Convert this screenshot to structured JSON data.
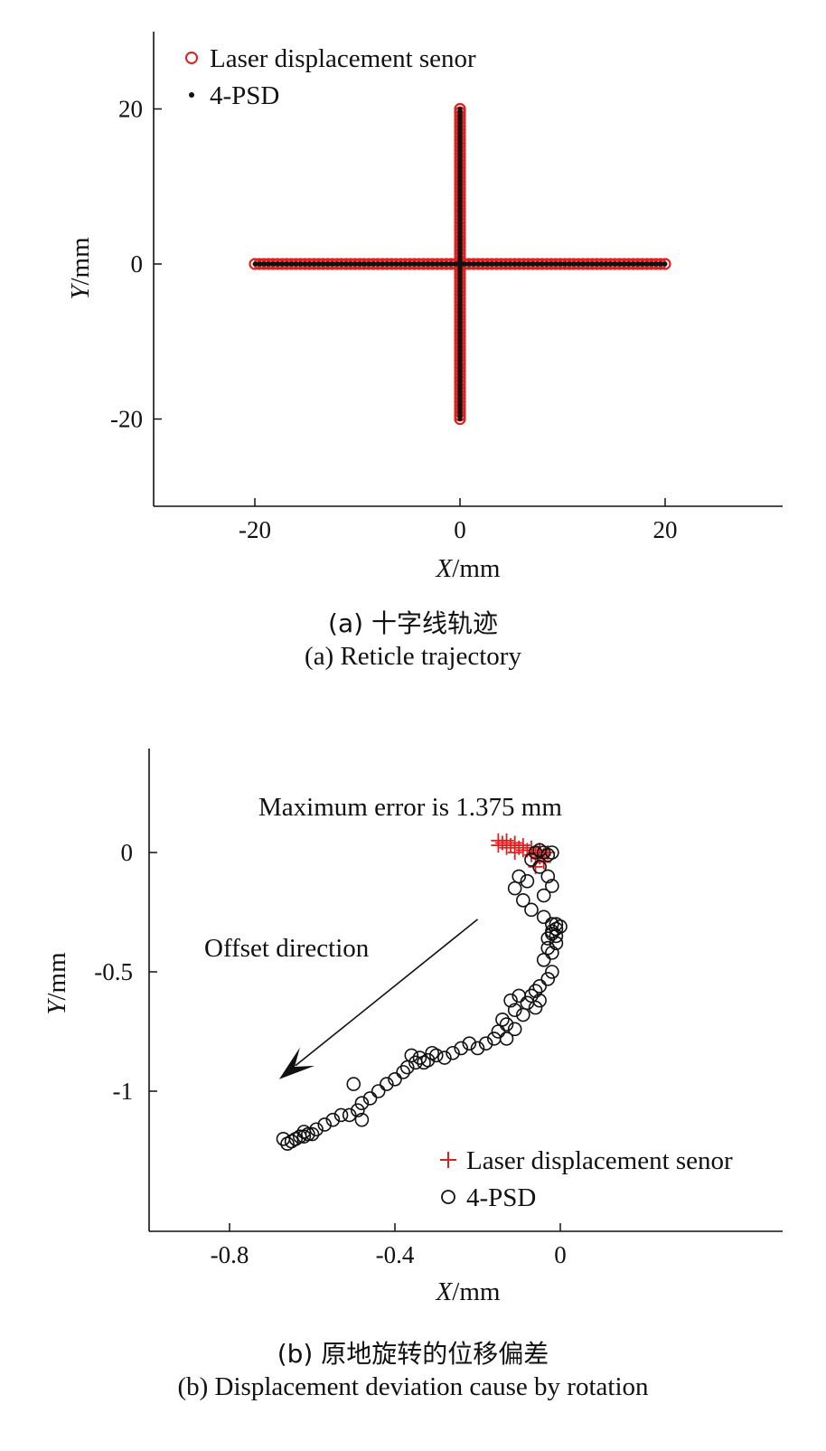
{
  "chart_data": [
    {
      "type": "scatter",
      "xlabel": {
        "var": "X",
        "unit": "/mm"
      },
      "ylabel": {
        "var": "Y",
        "unit": "/mm"
      },
      "xlim": [
        -30,
        30
      ],
      "ylim": [
        -30,
        30
      ],
      "xticks": [
        -20,
        0,
        20
      ],
      "xtick_labels": [
        "-20",
        "0",
        "20"
      ],
      "yticks": [
        20,
        0,
        -20
      ],
      "ytick_labels": [
        "20",
        "0",
        "-20"
      ],
      "legend_position": "top-left",
      "colors": {
        "laser": "#e02020",
        "psd": "#111111"
      },
      "series": [
        {
          "name": "Laser displacement senor",
          "marker": "circle",
          "segments": [
            {
              "x": [
                -20,
                20
              ],
              "y": [
                0,
                0
              ]
            },
            {
              "x": [
                0,
                0
              ],
              "y": [
                -20,
                20
              ]
            }
          ]
        },
        {
          "name": "4-PSD",
          "marker": "dot",
          "segments": [
            {
              "x": [
                -20,
                20
              ],
              "y": [
                0,
                0
              ]
            },
            {
              "x": [
                0,
                0
              ],
              "y": [
                -20,
                20
              ]
            }
          ]
        }
      ]
    },
    {
      "type": "scatter",
      "xlabel": {
        "var": "X",
        "unit": "/mm"
      },
      "ylabel": {
        "var": "Y",
        "unit": "/mm"
      },
      "xlim": [
        -1.0,
        0.5
      ],
      "ylim": [
        -1.48,
        0.5
      ],
      "xticks": [
        -0.8,
        -0.4,
        0
      ],
      "xtick_labels": [
        "-0.8",
        "-0.4",
        "0"
      ],
      "yticks": [
        0,
        -0.5,
        -1
      ],
      "ytick_labels": [
        "0",
        "-0.5",
        "-1"
      ],
      "legend_position": "bottom-right",
      "colors": {
        "laser": "#e02020",
        "psd": "#111111"
      },
      "annotations": {
        "max_error": "Maximum error is 1.375 mm",
        "offset_direction": "Offset direction",
        "arrow": {
          "from": [
            -0.2,
            -0.28
          ],
          "to": [
            -0.68,
            -0.95
          ]
        }
      },
      "series": [
        {
          "name": "Laser displacement senor",
          "marker": "plus",
          "x": [
            -0.15,
            -0.14,
            -0.13,
            -0.12,
            -0.11,
            -0.1,
            -0.09,
            -0.08,
            -0.07,
            -0.06,
            -0.05,
            -0.04,
            -0.03,
            -0.15,
            -0.13,
            -0.11,
            -0.09,
            -0.07,
            -0.05,
            -0.06,
            -0.04
          ],
          "y": [
            0.05,
            0.04,
            0.05,
            0.03,
            0.04,
            0.02,
            0.03,
            0.01,
            0.02,
            0.0,
            0.01,
            -0.01,
            0.0,
            0.03,
            0.02,
            0.0,
            0.01,
            -0.01,
            -0.02,
            -0.06,
            -0.04
          ]
        },
        {
          "name": "4-PSD",
          "marker": "circle",
          "x": [
            -0.06,
            -0.05,
            -0.04,
            -0.03,
            -0.02,
            -0.07,
            -0.05,
            -0.03,
            -0.02,
            -0.04,
            -0.08,
            -0.1,
            -0.11,
            -0.09,
            -0.07,
            -0.04,
            -0.02,
            -0.01,
            -0.02,
            -0.03,
            -0.01,
            -0.02,
            -0.01,
            -0.03,
            -0.02,
            -0.04,
            -0.01,
            0.0,
            -0.02,
            -0.03,
            -0.05,
            -0.06,
            -0.07,
            -0.05,
            -0.06,
            -0.08,
            -0.1,
            -0.09,
            -0.11,
            -0.12,
            -0.13,
            -0.11,
            -0.14,
            -0.15,
            -0.13,
            -0.16,
            -0.18,
            -0.2,
            -0.22,
            -0.24,
            -0.26,
            -0.28,
            -0.3,
            -0.32,
            -0.34,
            -0.35,
            -0.36,
            -0.33,
            -0.31,
            -0.37,
            -0.38,
            -0.4,
            -0.42,
            -0.44,
            -0.46,
            -0.48,
            -0.5,
            -0.49,
            -0.51,
            -0.48,
            -0.53,
            -0.55,
            -0.57,
            -0.59,
            -0.61,
            -0.62,
            -0.63,
            -0.64,
            -0.65,
            -0.66,
            -0.67,
            -0.62,
            -0.6
          ],
          "y": [
            0.0,
            0.01,
            0.0,
            -0.01,
            0.0,
            -0.03,
            -0.06,
            -0.1,
            -0.14,
            -0.18,
            -0.12,
            -0.1,
            -0.15,
            -0.2,
            -0.24,
            -0.27,
            -0.3,
            -0.32,
            -0.34,
            -0.36,
            -0.38,
            -0.33,
            -0.3,
            -0.4,
            -0.42,
            -0.45,
            -0.35,
            -0.31,
            -0.5,
            -0.53,
            -0.56,
            -0.58,
            -0.6,
            -0.62,
            -0.65,
            -0.63,
            -0.6,
            -0.68,
            -0.66,
            -0.62,
            -0.72,
            -0.74,
            -0.7,
            -0.75,
            -0.78,
            -0.78,
            -0.8,
            -0.82,
            -0.8,
            -0.82,
            -0.84,
            -0.86,
            -0.85,
            -0.87,
            -0.86,
            -0.88,
            -0.85,
            -0.88,
            -0.84,
            -0.9,
            -0.92,
            -0.95,
            -0.97,
            -1.0,
            -1.03,
            -1.05,
            -0.97,
            -1.08,
            -1.1,
            -1.12,
            -1.1,
            -1.12,
            -1.14,
            -1.16,
            -1.18,
            -1.17,
            -1.19,
            -1.2,
            -1.21,
            -1.22,
            -1.2,
            -1.19,
            -1.18
          ]
        }
      ]
    }
  ],
  "captions": {
    "a_cn": "(a) 十字线轨迹",
    "a_en": "(a) Reticle trajectory",
    "b_cn": "(b) 原地旋转的位移偏差",
    "b_en": "(b) Displacement deviation cause by rotation"
  }
}
